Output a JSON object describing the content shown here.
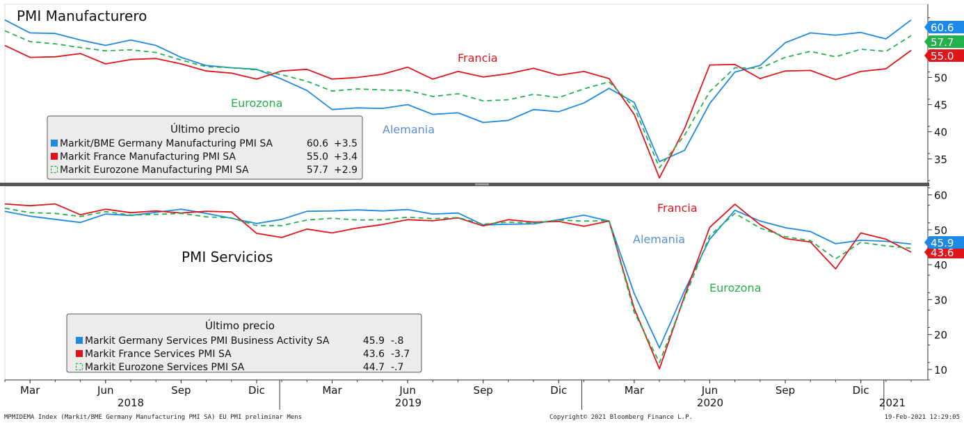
{
  "top_panel": {
    "title": "PMI Manufacturero",
    "labels": {
      "fr": "Francia",
      "ez": "Eurozona",
      "de": "Alemania"
    },
    "legend": {
      "header": "Último precio",
      "rows": [
        {
          "name": "Markit/BME Germany Manufacturing PMI SA",
          "value": "60.6",
          "change": "+3.5",
          "color": "#1e88e5",
          "marker": "square"
        },
        {
          "name": "Markit France Manufacturing PMI SA",
          "value": "55.0",
          "change": "+3.4",
          "color": "#e0141b",
          "marker": "square"
        },
        {
          "name": "Markit Eurozone Manufacturing PMI SA",
          "value": "57.7",
          "change": "+2.9",
          "color": "#22b14c",
          "marker": "dashed"
        }
      ]
    },
    "tags": [
      {
        "text": "60.6",
        "value": 60.6,
        "color": "#1e88e5"
      },
      {
        "text": "57.7",
        "value": 57.7,
        "color": "#22b14c"
      },
      {
        "text": "55.0",
        "value": 55.0,
        "color": "#e0141b"
      }
    ]
  },
  "bottom_panel": {
    "title": "PMI Servicios",
    "labels": {
      "fr": "Francia",
      "ez": "Eurozona",
      "de": "Alemania"
    },
    "legend": {
      "header": "Último precio",
      "rows": [
        {
          "name": "Markit Germany Services PMI Business Activity SA",
          "value": "45.9",
          "change": "-.8",
          "color": "#1e88e5",
          "marker": "square"
        },
        {
          "name": "Markit France Services PMI SA",
          "value": "43.6",
          "change": "-3.7",
          "color": "#e0141b",
          "marker": "square"
        },
        {
          "name": "Markit Eurozone Services PMI SA",
          "value": "44.7",
          "change": "-.7",
          "color": "#22b14c",
          "marker": "dashed"
        }
      ]
    },
    "tags": [
      {
        "text": "43.6",
        "value": 43.6,
        "color": "#e0141b"
      },
      {
        "text": "45.9",
        "value": 45.9,
        "color": "#1e88e5"
      }
    ]
  },
  "x_axis": {
    "months": [
      "Mar",
      "Jun",
      "Sep",
      "Dic",
      "Mar",
      "Jun",
      "Sep",
      "Dic",
      "Mar",
      "Jun",
      "Sep",
      "Dic"
    ],
    "years": [
      "2018",
      "2019",
      "2020",
      "2021"
    ]
  },
  "footer": {
    "left": "MPMIDEMA Index (Markit/BME Germany Manufacturing PMI SA) EU PMI preliminar  Mens",
    "center": "Copyright© 2021 Bloomberg Finance L.P.",
    "right": "19-Feb-2021 12:29:05"
  },
  "chart_data": [
    {
      "type": "line",
      "title": "PMI Manufacturero",
      "x": [
        "2018-02",
        "2018-03",
        "2018-04",
        "2018-05",
        "2018-06",
        "2018-07",
        "2018-08",
        "2018-09",
        "2018-10",
        "2018-11",
        "2018-12",
        "2019-01",
        "2019-02",
        "2019-03",
        "2019-04",
        "2019-05",
        "2019-06",
        "2019-07",
        "2019-08",
        "2019-09",
        "2019-10",
        "2019-11",
        "2019-12",
        "2020-01",
        "2020-02",
        "2020-03",
        "2020-04",
        "2020-05",
        "2020-06",
        "2020-07",
        "2020-08",
        "2020-09",
        "2020-10",
        "2020-11",
        "2020-12",
        "2021-01",
        "2021-02"
      ],
      "yticks": [
        35,
        40,
        45,
        50
      ],
      "ylim": [
        30.5,
        63.5
      ],
      "series": [
        {
          "name": "Markit/BME Germany Manufacturing PMI SA",
          "color": "#1e88e5",
          "dashed": false,
          "values": [
            60.6,
            58.2,
            58.1,
            56.9,
            55.9,
            56.9,
            55.9,
            53.7,
            52.2,
            51.8,
            51.5,
            49.7,
            47.6,
            44.1,
            44.4,
            44.3,
            45.0,
            43.2,
            43.5,
            41.7,
            42.1,
            44.1,
            43.7,
            45.3,
            48.0,
            45.4,
            34.5,
            36.6,
            45.2,
            51.0,
            52.2,
            56.4,
            58.2,
            57.8,
            58.3,
            57.1,
            60.6
          ]
        },
        {
          "name": "Markit France Manufacturing PMI SA",
          "color": "#e0141b",
          "dashed": false,
          "values": [
            55.9,
            53.7,
            53.8,
            54.4,
            52.5,
            53.3,
            53.5,
            52.5,
            51.2,
            50.8,
            49.7,
            51.2,
            51.5,
            49.7,
            50.0,
            50.6,
            51.9,
            49.7,
            51.1,
            50.1,
            50.7,
            51.7,
            50.4,
            51.1,
            49.8,
            43.2,
            31.5,
            40.6,
            52.3,
            52.4,
            49.8,
            51.2,
            51.3,
            49.6,
            51.1,
            51.6,
            55.0
          ]
        },
        {
          "name": "Markit Eurozone Manufacturing PMI SA",
          "color": "#22b14c",
          "dashed": true,
          "values": [
            58.6,
            56.6,
            56.2,
            55.5,
            54.9,
            55.1,
            54.6,
            53.2,
            52.0,
            51.8,
            51.4,
            50.5,
            49.3,
            47.5,
            47.9,
            47.7,
            47.6,
            46.5,
            47.0,
            45.7,
            45.9,
            46.9,
            46.3,
            47.9,
            49.2,
            44.5,
            33.4,
            39.4,
            47.4,
            51.8,
            51.7,
            53.7,
            54.8,
            53.8,
            55.2,
            54.8,
            57.7
          ]
        }
      ]
    },
    {
      "type": "line",
      "title": "PMI Servicios",
      "x": [
        "2018-02",
        "2018-03",
        "2018-04",
        "2018-05",
        "2018-06",
        "2018-07",
        "2018-08",
        "2018-09",
        "2018-10",
        "2018-11",
        "2018-12",
        "2019-01",
        "2019-02",
        "2019-03",
        "2019-04",
        "2019-05",
        "2019-06",
        "2019-07",
        "2019-08",
        "2019-09",
        "2019-10",
        "2019-11",
        "2019-12",
        "2020-01",
        "2020-02",
        "2020-03",
        "2020-04",
        "2020-05",
        "2020-06",
        "2020-07",
        "2020-08",
        "2020-09",
        "2020-10",
        "2020-11",
        "2020-12",
        "2021-01",
        "2021-02"
      ],
      "yticks": [
        10,
        20,
        30,
        40,
        50,
        60
      ],
      "ylim": [
        7,
        62.5
      ],
      "series": [
        {
          "name": "Markit Germany Services PMI Business Activity SA",
          "color": "#1e88e5",
          "dashed": false,
          "values": [
            55.3,
            53.9,
            53.0,
            52.1,
            54.5,
            54.1,
            55.0,
            55.9,
            54.7,
            53.3,
            51.8,
            53.0,
            55.3,
            55.4,
            55.7,
            55.4,
            55.8,
            54.5,
            54.8,
            51.4,
            51.6,
            51.7,
            52.9,
            54.2,
            52.5,
            31.7,
            16.2,
            32.6,
            47.3,
            55.6,
            52.5,
            50.6,
            49.5,
            46.0,
            47.0,
            46.7,
            45.9
          ]
        },
        {
          "name": "Markit France Services PMI SA",
          "color": "#e0141b",
          "dashed": false,
          "values": [
            57.4,
            56.9,
            57.4,
            54.3,
            55.9,
            54.9,
            55.4,
            54.8,
            55.3,
            55.1,
            49.0,
            47.8,
            50.2,
            49.1,
            50.5,
            51.5,
            52.9,
            52.6,
            53.4,
            51.1,
            52.9,
            52.2,
            52.4,
            51.0,
            52.5,
            27.4,
            10.2,
            31.1,
            50.7,
            57.3,
            51.5,
            47.5,
            46.5,
            38.8,
            49.1,
            47.3,
            43.6
          ]
        },
        {
          "name": "Markit Eurozone Services PMI SA",
          "color": "#22b14c",
          "dashed": true,
          "values": [
            56.2,
            54.9,
            54.7,
            53.8,
            55.2,
            54.2,
            54.4,
            54.7,
            53.7,
            53.4,
            51.2,
            51.2,
            52.8,
            53.3,
            52.8,
            52.9,
            53.6,
            53.2,
            53.5,
            51.6,
            52.2,
            51.9,
            52.8,
            52.5,
            52.6,
            26.4,
            12.0,
            30.5,
            48.3,
            54.7,
            50.5,
            48.0,
            46.9,
            41.7,
            46.4,
            45.4,
            44.7
          ]
        }
      ]
    }
  ]
}
